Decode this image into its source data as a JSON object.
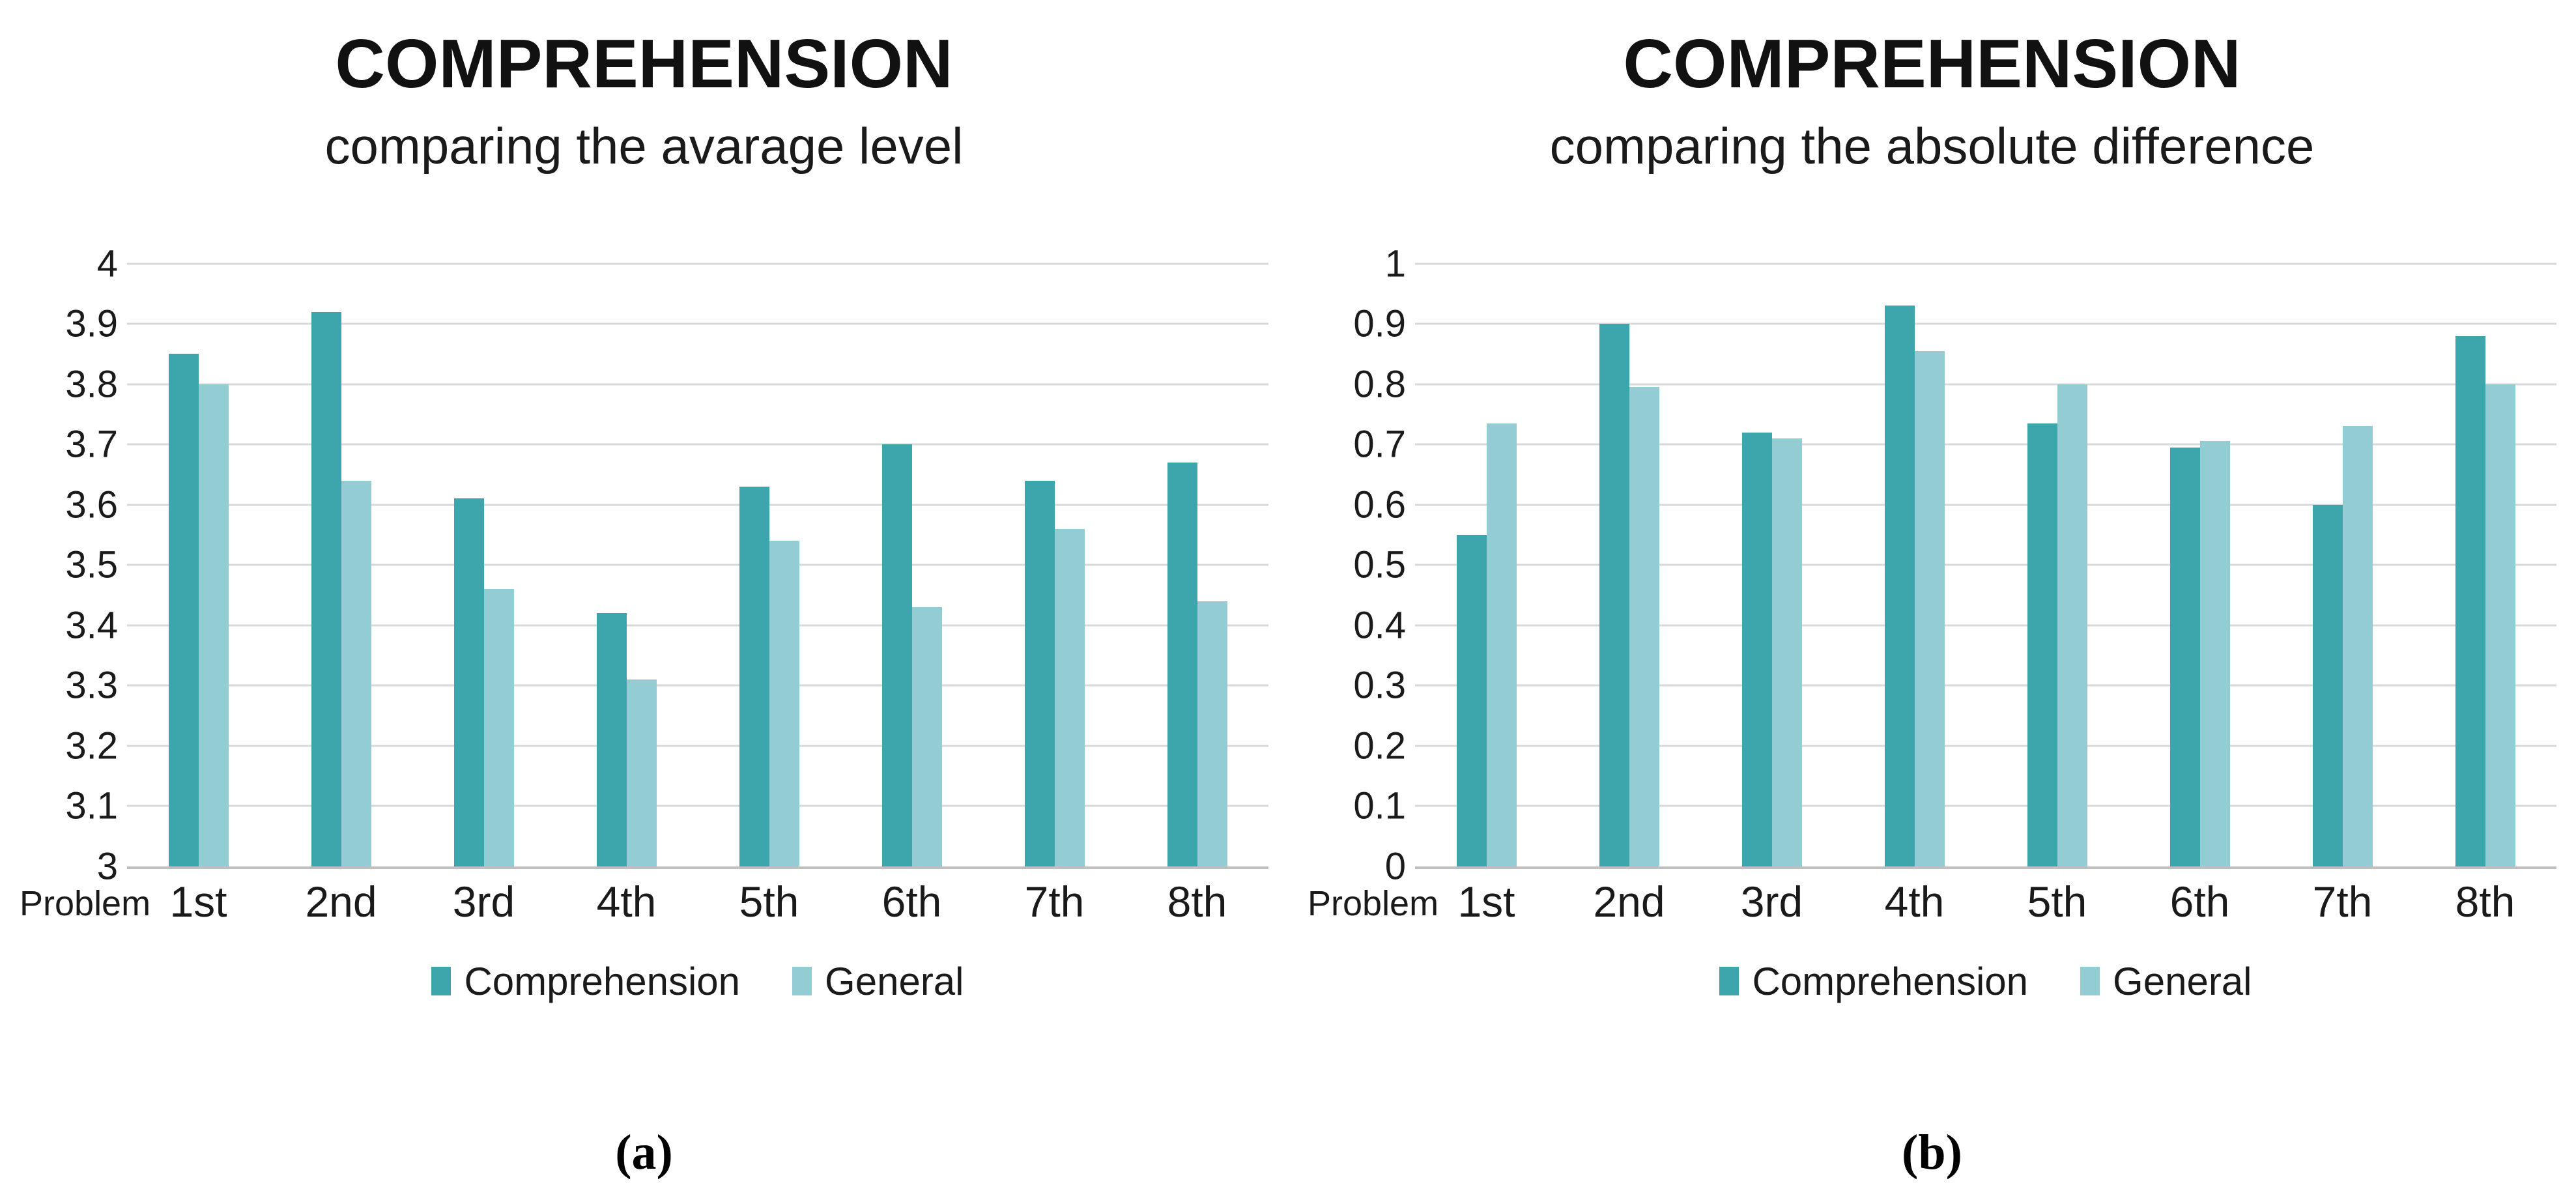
{
  "page": {
    "background": "#ffffff"
  },
  "colors": {
    "comprehension": "#3DA5AC",
    "general": "#93CDD3",
    "gridline": "#D9D9D9",
    "axis_line": "#BFBFBF",
    "text": "#000000"
  },
  "panels": [
    {
      "caption": "(a)"
    },
    {
      "caption": "(b)"
    }
  ],
  "chart_data": [
    {
      "type": "bar",
      "title": "COMPREHENSION",
      "subtitle": "comparing the avarage level",
      "xlabel": "Problem",
      "ylabel": "",
      "categories": [
        "1st",
        "2nd",
        "3rd",
        "4th",
        "5th",
        "6th",
        "7th",
        "8th"
      ],
      "series": [
        {
          "name": "Comprehension",
          "values": [
            3.85,
            3.92,
            3.61,
            3.42,
            3.63,
            3.7,
            3.64,
            3.67
          ]
        },
        {
          "name": "General",
          "values": [
            3.8,
            3.64,
            3.46,
            3.31,
            3.54,
            3.43,
            3.56,
            3.44
          ]
        }
      ],
      "ylim": [
        3,
        4
      ],
      "yticks": [
        "4",
        "3.9",
        "3.8",
        "3.7",
        "3.6",
        "3.5",
        "3.4",
        "3.3",
        "3.2",
        "3.1",
        "3"
      ],
      "grid": true,
      "legend_position": "bottom"
    },
    {
      "type": "bar",
      "title": "COMPREHENSION",
      "subtitle": "comparing the absolute difference",
      "xlabel": "Problem",
      "ylabel": "",
      "categories": [
        "1st",
        "2nd",
        "3rd",
        "4th",
        "5th",
        "6th",
        "7th",
        "8th"
      ],
      "series": [
        {
          "name": "Comprehension",
          "values": [
            0.55,
            0.9,
            0.72,
            0.93,
            0.735,
            0.695,
            0.6,
            0.88
          ]
        },
        {
          "name": "General",
          "values": [
            0.735,
            0.795,
            0.71,
            0.855,
            0.8,
            0.705,
            0.73,
            0.8
          ]
        }
      ],
      "ylim": [
        0,
        1
      ],
      "yticks": [
        "1",
        "0.9",
        "0.8",
        "0.7",
        "0.6",
        "0.5",
        "0.4",
        "0.3",
        "0.2",
        "0.1",
        "0"
      ],
      "grid": true,
      "legend_position": "bottom"
    }
  ]
}
